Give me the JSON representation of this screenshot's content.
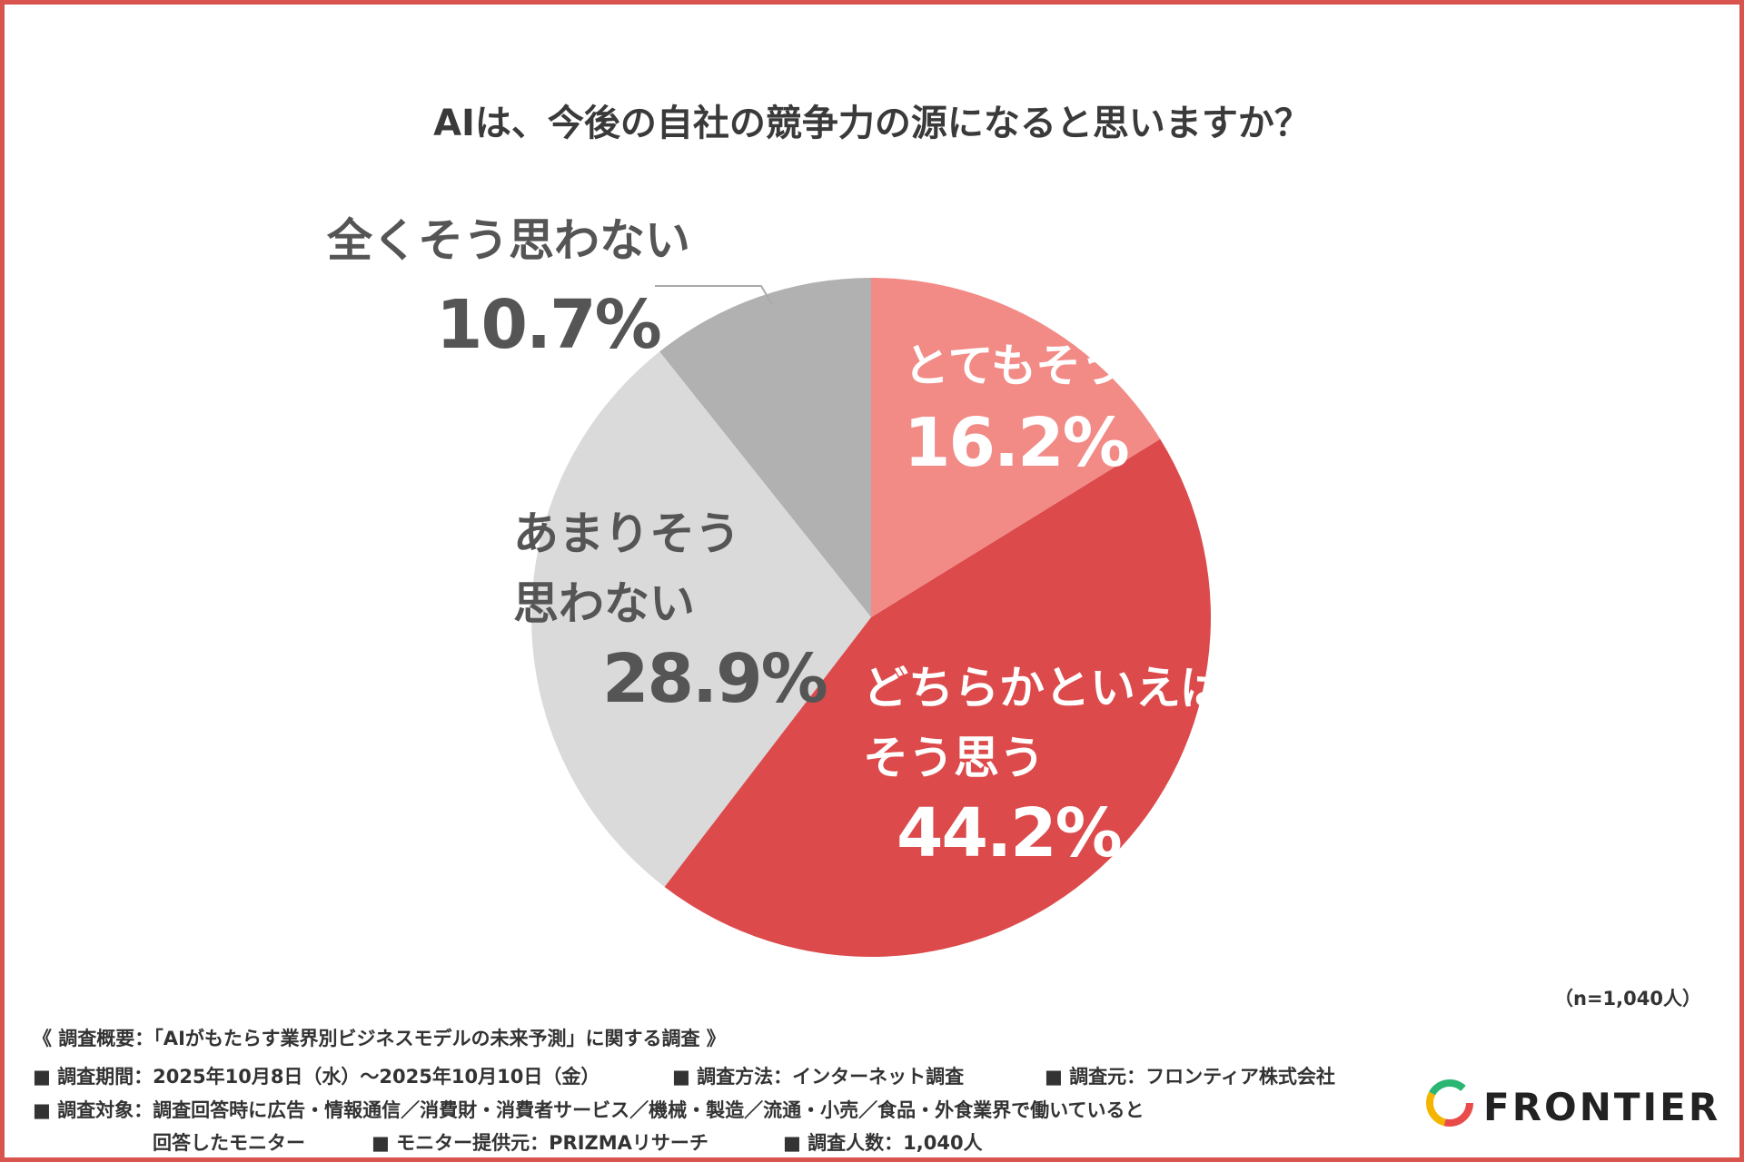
{
  "chart_data": {
    "type": "pie",
    "title": "AIは、今後の自社の競争力の源になると思いますか？",
    "categories": [
      "とてもそう思う",
      "どちらかといえば\nそう思う",
      "あまりそう\n思わない",
      "全くそう思わない"
    ],
    "values": [
      16.2,
      44.2,
      28.9,
      10.7
    ],
    "value_labels": [
      "16.2%",
      "44.2%",
      "28.9%",
      "10.7%"
    ],
    "colors": [
      "#f28a86",
      "#dc4a4b",
      "#dadada",
      "#b1b1b1"
    ]
  },
  "sample_note": "（n=1,040人）",
  "survey": {
    "heading": "《 調査概要：「AIがもたらす業界別ビジネスモデルの未来予測」に関する調査 》",
    "items": [
      "■ 調査期間：2025年10月8日（水）〜2025年10月10日（金）",
      "■ 調査方法：インターネット調査",
      "■ 調査元：フロンティア株式会社",
      "■ 調査対象：調査回答時に広告・情報通信／消費財・消費者サービス／機械・製造／流通・小売／食品・外食業界で働いていると",
      "回答したモニター",
      "■ モニター提供元：PRIZMAリサーチ",
      "■ 調査人数：1,040人"
    ]
  },
  "logo": "FRONTIER"
}
